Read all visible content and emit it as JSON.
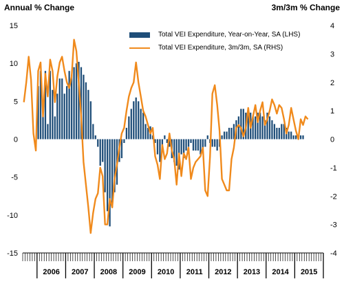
{
  "chart_data": {
    "type": "bar+line",
    "lhs_title": "Annual % Change",
    "rhs_title": "3m/3m % Change",
    "lhs_ticks": [
      15,
      10,
      5,
      0,
      -5,
      -10,
      -15
    ],
    "rhs_ticks": [
      4,
      3,
      2,
      1,
      0,
      -1,
      -2,
      -3,
      -4
    ],
    "ylim_lhs": [
      -15,
      15
    ],
    "ylim_rhs": [
      -4,
      4
    ],
    "x_start": "2005-07",
    "x_end": "2015-12",
    "years": [
      "2006",
      "2007",
      "2008",
      "2009",
      "2010",
      "2011",
      "2012",
      "2013",
      "2014",
      "2015"
    ],
    "grid": false,
    "legend_position": "top-right",
    "series": [
      {
        "name": "Total VEI Expenditure, Year-on-Year, SA (LHS)",
        "type": "bar",
        "axis": "left",
        "color": "#1f4e79",
        "values": [
          0,
          0,
          0,
          0,
          0,
          0,
          7.0,
          9.0,
          3.0,
          9.0,
          2.0,
          9.0,
          6.5,
          3.0,
          6.0,
          8.0,
          8.0,
          6.0,
          7.0,
          9.0,
          8.5,
          9.5,
          10.0,
          10.2,
          9.5,
          8.5,
          7.5,
          6.5,
          5.0,
          2.0,
          0.5,
          -1.0,
          -3.5,
          -3.0,
          -7.0,
          -9.5,
          -11.5,
          -9.0,
          -7.0,
          -6.0,
          -3.0,
          -2.5,
          -0.5,
          1.5,
          3.0,
          4.0,
          5.0,
          5.5,
          5.0,
          4.0,
          3.5,
          2.0,
          1.5,
          1.7,
          0.5,
          -0.5,
          -2.0,
          -3.0,
          -1.5,
          0.5,
          -0.5,
          -1.0,
          -2.5,
          -3.0,
          -3.5,
          -4.0,
          -2.0,
          -2.5,
          -1.5,
          -1.0,
          -0.5,
          -1.5,
          -1.5,
          -1.5,
          -2.0,
          -1.5,
          -1.0,
          0.5,
          -0.5,
          -1.0,
          -1.0,
          -1.5,
          -1.0,
          0.5,
          1.0,
          1.0,
          1.5,
          1.5,
          2.0,
          2.5,
          3.0,
          4.0,
          4.0,
          3.5,
          3.5,
          3.5,
          3.0,
          3.0,
          3.5,
          3.5,
          3.0,
          2.5,
          3.5,
          3.0,
          2.5,
          2.0,
          1.5,
          1.5,
          2.0,
          2.0,
          1.5,
          1.0,
          1.0,
          0.5,
          0.5,
          0.5,
          0.5,
          0.5
        ]
      },
      {
        "name": "Total VEI Expenditure, 3m/3m, SA (RHS)",
        "type": "line",
        "axis": "right",
        "color": "#f08a1c",
        "values": [
          1.3,
          2.0,
          2.9,
          2.1,
          0.2,
          -0.4,
          2.4,
          2.7,
          0.8,
          2.3,
          1.5,
          2.8,
          2.4,
          1.3,
          2.2,
          2.7,
          2.9,
          2.4,
          2.0,
          1.8,
          2.2,
          3.5,
          3.1,
          2.0,
          0.8,
          -0.8,
          -1.6,
          -2.4,
          -3.3,
          -2.6,
          -2.1,
          -1.9,
          -1.0,
          -1.3,
          -3.0,
          -3.0,
          -2.1,
          -2.4,
          -1.4,
          -0.9,
          -0.3,
          0.2,
          0.4,
          1.0,
          1.5,
          1.8,
          2.0,
          2.7,
          2.0,
          1.5,
          1.0,
          0.8,
          0.5,
          0.2,
          0.4,
          -0.6,
          -0.9,
          -1.4,
          -0.2,
          -0.7,
          -0.5,
          0.2,
          -0.4,
          -0.7,
          -1.6,
          -0.5,
          -1.3,
          -0.5,
          -0.7,
          -0.3,
          -1.4,
          -1.0,
          -0.8,
          -0.7,
          -0.6,
          -0.3,
          -1.8,
          -2.0,
          -0.6,
          1.6,
          1.9,
          1.2,
          0.3,
          -1.4,
          -1.6,
          -1.8,
          -1.8,
          -0.7,
          -0.3,
          0.4,
          0.5,
          0.4,
          0.1,
          0.4,
          1.1,
          0.4,
          0.8,
          1.2,
          0.6,
          1.0,
          1.3,
          0.5,
          0.7,
          1.0,
          1.4,
          1.2,
          0.9,
          1.2,
          1.1,
          0.7,
          0.2,
          0.5,
          1.1,
          0.7,
          0.3,
          0.0,
          0.7,
          0.5,
          0.8,
          0.7
        ]
      }
    ]
  }
}
